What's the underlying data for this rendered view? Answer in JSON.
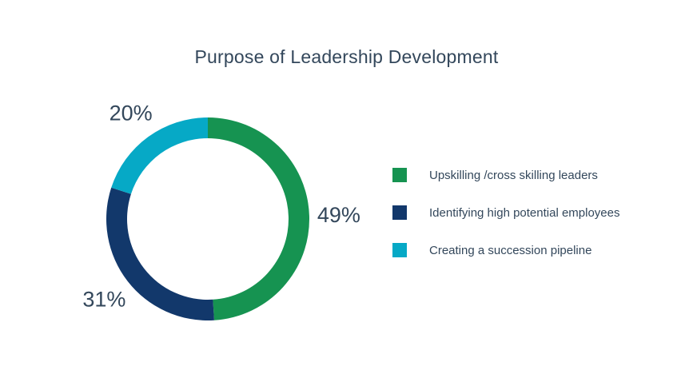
{
  "page": {
    "background": "#ffffff",
    "text_color": "#33475b"
  },
  "chart_data": {
    "type": "pie",
    "subtype": "donut",
    "title": "Purpose of Leadership Development",
    "unit_suffix": "%",
    "start_angle_deg": 0,
    "direction": "clockwise",
    "legend_position": "right",
    "slices": [
      {
        "label": "Upskilling /cross skilling leaders",
        "value": 49,
        "color": "#169351"
      },
      {
        "label": "Identifying high potential employees",
        "value": 31,
        "color": "#12386b"
      },
      {
        "label": "Creating a succession pipeline",
        "value": 20,
        "color": "#06a9c6"
      }
    ]
  }
}
